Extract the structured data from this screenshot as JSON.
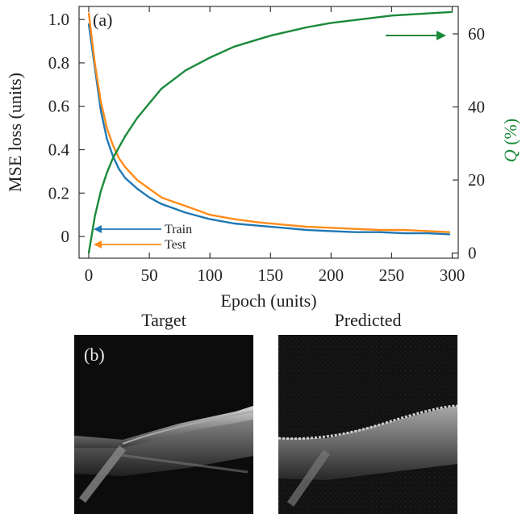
{
  "chart_data": [
    {
      "type": "line",
      "panel_label": "(a)",
      "xlabel": "Epoch (units)",
      "ylabel": "MSE loss (units)",
      "y2label_symbol": "Q",
      "y2label_unit": "(%)",
      "xlim": [
        -8,
        305
      ],
      "ylim": [
        -0.1,
        1.06
      ],
      "y2lim": [
        -1.4,
        67.5
      ],
      "x_ticks": [
        0,
        50,
        100,
        150,
        200,
        250,
        300
      ],
      "y_ticks": [
        0,
        0.2,
        0.4,
        0.6,
        0.8,
        1.0
      ],
      "y_tick_labels": [
        "0",
        "0.2",
        "0.4",
        "0.6",
        "0.8",
        "1.0"
      ],
      "y2_ticks": [
        0,
        20,
        40,
        60
      ],
      "legend": [
        {
          "name": "Train",
          "color": "#1f77b4"
        },
        {
          "name": "Test",
          "color": "#ff8c1a"
        }
      ],
      "series": [
        {
          "name": "Train",
          "axis": "left",
          "color": "#1f77b4",
          "x": [
            0,
            5,
            10,
            15,
            20,
            25,
            30,
            40,
            50,
            60,
            70,
            80,
            90,
            100,
            120,
            140,
            160,
            180,
            200,
            220,
            240,
            260,
            280,
            298
          ],
          "y": [
            0.98,
            0.78,
            0.58,
            0.45,
            0.37,
            0.31,
            0.27,
            0.22,
            0.18,
            0.15,
            0.13,
            0.11,
            0.095,
            0.08,
            0.06,
            0.05,
            0.04,
            0.03,
            0.025,
            0.02,
            0.02,
            0.015,
            0.015,
            0.01
          ]
        },
        {
          "name": "Test",
          "axis": "left",
          "color": "#ff8c1a",
          "x": [
            0,
            5,
            10,
            15,
            20,
            25,
            30,
            40,
            50,
            60,
            70,
            80,
            90,
            100,
            120,
            140,
            160,
            180,
            200,
            220,
            240,
            260,
            280,
            298
          ],
          "y": [
            1.03,
            0.8,
            0.62,
            0.5,
            0.42,
            0.36,
            0.32,
            0.26,
            0.22,
            0.18,
            0.16,
            0.14,
            0.12,
            0.1,
            0.08,
            0.065,
            0.055,
            0.045,
            0.04,
            0.035,
            0.03,
            0.03,
            0.025,
            0.02
          ]
        },
        {
          "name": "Q",
          "axis": "right",
          "color": "#1a8a3a",
          "x": [
            0,
            5,
            10,
            15,
            20,
            30,
            40,
            50,
            60,
            80,
            100,
            120,
            150,
            180,
            200,
            250,
            300
          ],
          "y": [
            0,
            10,
            17,
            22,
            26,
            32,
            37,
            41,
            45,
            50,
            53.5,
            56.5,
            59.5,
            61.8,
            63,
            65,
            66
          ]
        }
      ],
      "grid": false
    },
    {
      "type": "image-pair",
      "panel_label": "(b)",
      "titles": [
        "Target",
        "Predicted"
      ]
    }
  ]
}
